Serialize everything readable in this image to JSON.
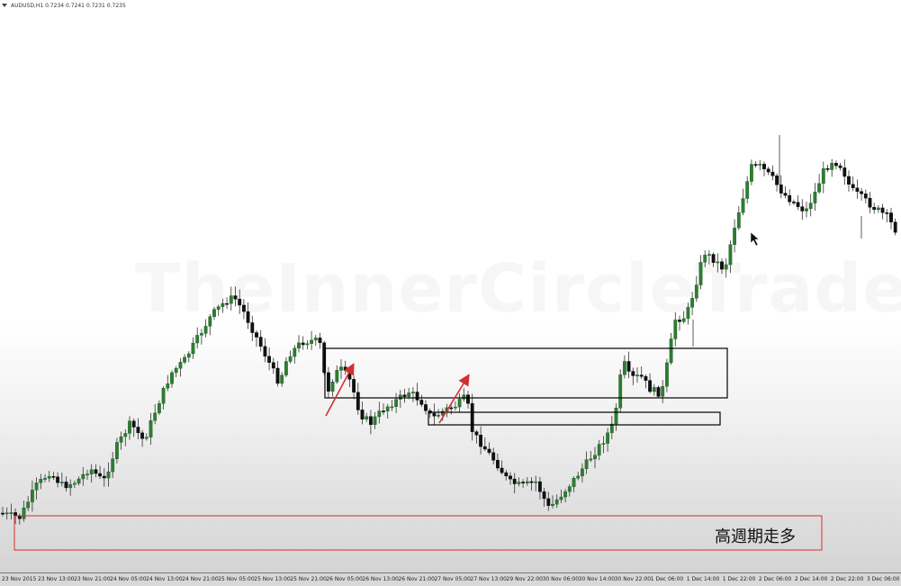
{
  "chart": {
    "symbol_header": "AUDUSD,H1  0.7234 0.7241 0.7231 0.7235",
    "watermark": "TheInnerCircleTrader.com",
    "annotation": "高週期走多",
    "colors": {
      "bull": "#2e7d32",
      "bear": "#111111",
      "bias_box": "#d32f2f",
      "zone_box": "#000000",
      "arrow": "#d32f2f"
    },
    "x_ticks": [
      "23 Nov 2015",
      "23 Nov 13:00",
      "23 Nov 21:00",
      "24 Nov 05:00",
      "24 Nov 13:00",
      "24 Nov 21:00",
      "25 Nov 05:00",
      "25 Nov 13:00",
      "25 Nov 21:00",
      "26 Nov 05:00",
      "26 Nov 13:00",
      "26 Nov 21:00",
      "27 Nov 05:00",
      "27 Nov 13:00",
      "29 Nov 22:00",
      "30 Nov 06:00",
      "30 Nov 14:00",
      "30 Nov 22:00",
      "1 Dec 06:00",
      "1 Dec 14:00",
      "1 Dec 22:00",
      "2 Dec 06:00",
      "2 Dec 14:00",
      "2 Dec 22:00",
      "3 Dec 06:00"
    ]
  },
  "chart_data": {
    "type": "candlestick",
    "symbol": "AUDUSD",
    "timeframe": "H1",
    "header_quote": {
      "open": 0.7234,
      "high": 0.7241,
      "low": 0.7231,
      "close": 0.7235
    },
    "path_points": [
      [
        0,
        570
      ],
      [
        22,
        575
      ],
      [
        40,
        540
      ],
      [
        55,
        525
      ],
      [
        70,
        540
      ],
      [
        85,
        535
      ],
      [
        100,
        520
      ],
      [
        115,
        535
      ],
      [
        130,
        495
      ],
      [
        145,
        470
      ],
      [
        160,
        490
      ],
      [
        175,
        450
      ],
      [
        190,
        415
      ],
      [
        205,
        400
      ],
      [
        220,
        375
      ],
      [
        235,
        350
      ],
      [
        250,
        335
      ],
      [
        260,
        330
      ],
      [
        270,
        345
      ],
      [
        285,
        375
      ],
      [
        295,
        395
      ],
      [
        310,
        425
      ],
      [
        320,
        395
      ],
      [
        335,
        380
      ],
      [
        350,
        378
      ],
      [
        358,
        385
      ],
      [
        362,
        440
      ],
      [
        372,
        415
      ],
      [
        380,
        410
      ],
      [
        390,
        425
      ],
      [
        400,
        460
      ],
      [
        412,
        470
      ],
      [
        425,
        455
      ],
      [
        440,
        445
      ],
      [
        455,
        435
      ],
      [
        470,
        448
      ],
      [
        480,
        465
      ],
      [
        495,
        455
      ],
      [
        508,
        450
      ],
      [
        518,
        440
      ],
      [
        525,
        480
      ],
      [
        540,
        500
      ],
      [
        552,
        515
      ],
      [
        565,
        535
      ],
      [
        580,
        540
      ],
      [
        595,
        535
      ],
      [
        610,
        565
      ],
      [
        625,
        548
      ],
      [
        640,
        530
      ],
      [
        655,
        510
      ],
      [
        670,
        490
      ],
      [
        682,
        470
      ],
      [
        692,
        400
      ],
      [
        700,
        420
      ],
      [
        712,
        418
      ],
      [
        722,
        432
      ],
      [
        735,
        438
      ],
      [
        742,
        400
      ],
      [
        750,
        355
      ],
      [
        762,
        352
      ],
      [
        772,
        320
      ],
      [
        782,
        280
      ],
      [
        795,
        290
      ],
      [
        805,
        300
      ],
      [
        815,
        255
      ],
      [
        825,
        220
      ],
      [
        835,
        185
      ],
      [
        845,
        185
      ],
      [
        858,
        198
      ],
      [
        870,
        215
      ],
      [
        882,
        225
      ],
      [
        895,
        235
      ],
      [
        905,
        215
      ],
      [
        915,
        190
      ],
      [
        925,
        178
      ],
      [
        935,
        185
      ],
      [
        945,
        210
      ],
      [
        958,
        220
      ],
      [
        970,
        230
      ],
      [
        985,
        240
      ],
      [
        1001,
        265
      ]
    ]
  }
}
